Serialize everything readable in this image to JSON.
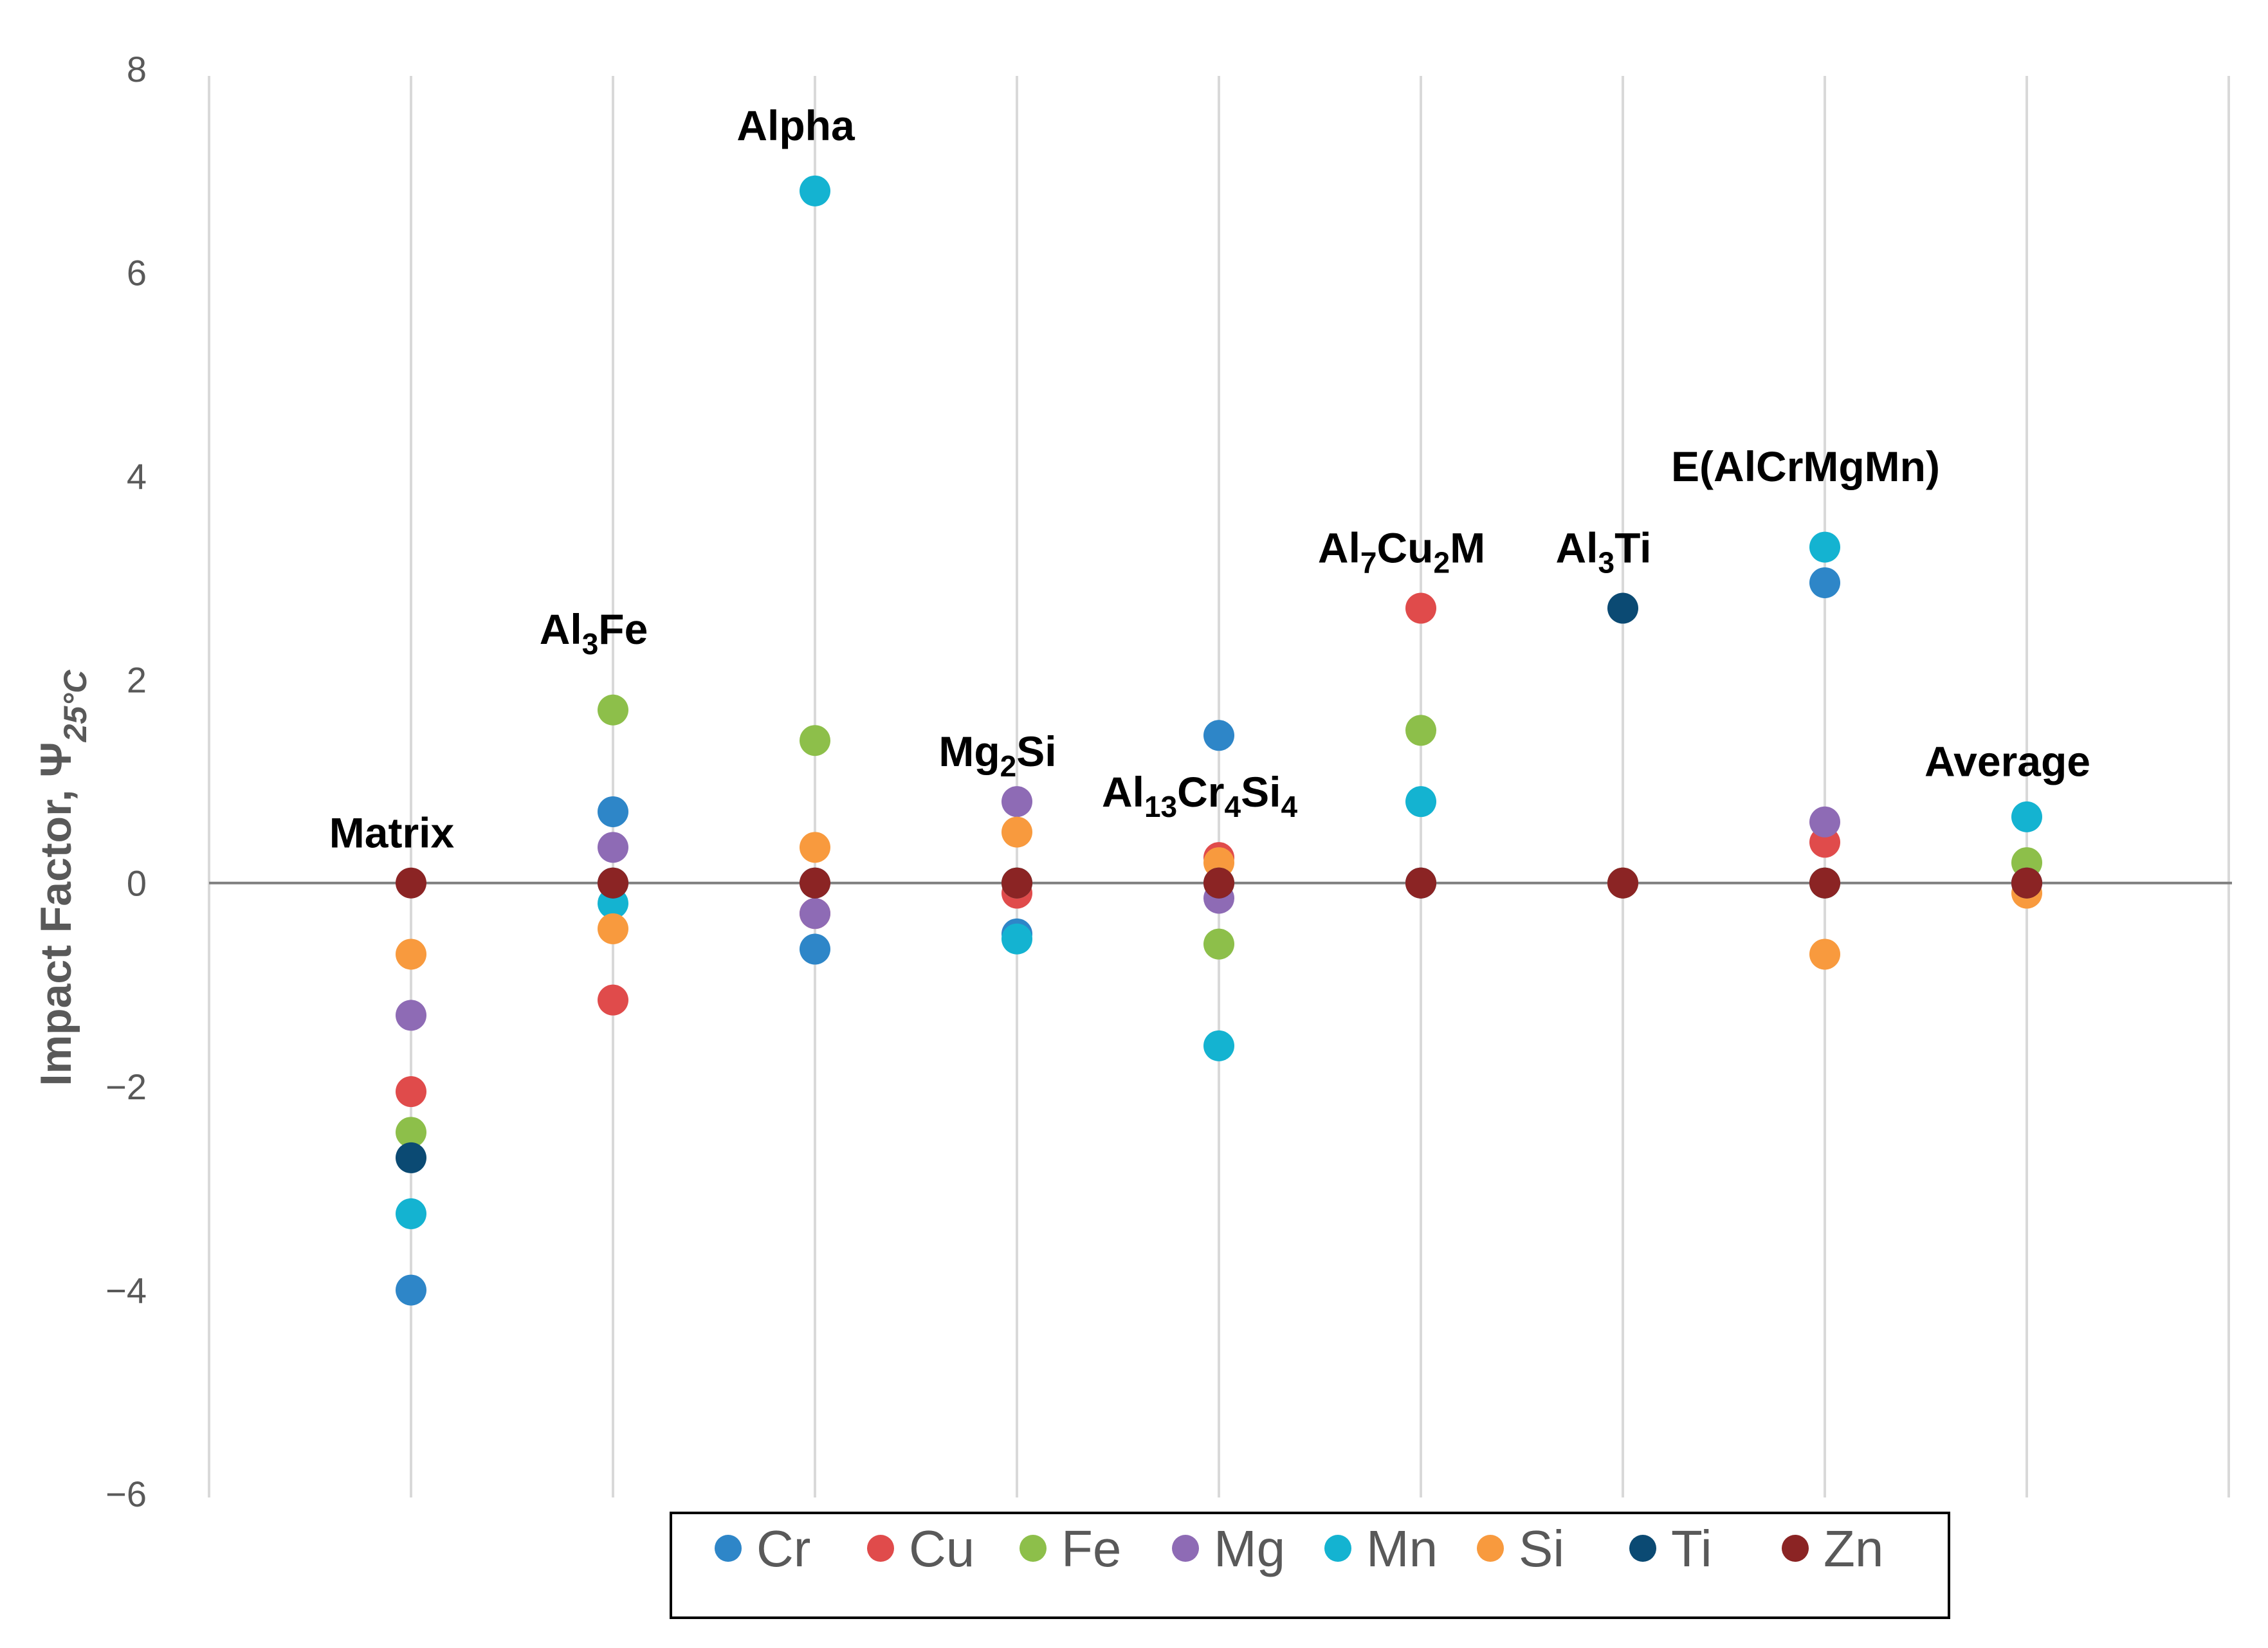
{
  "chart_data": {
    "type": "scatter",
    "title": "",
    "xlabel": "",
    "ylabel": "Impact Factor, Ψ",
    "ylabel_subscript": "25°C",
    "ylim": [
      -6,
      8
    ],
    "yticks": [
      -6,
      -4,
      -2,
      0,
      2,
      4,
      6,
      8
    ],
    "ytick_labels": [
      "−6",
      "−4",
      "−2",
      "0",
      "2",
      "4",
      "6",
      "8"
    ],
    "categories": [
      "Matrix",
      "Al3Fe",
      "Alpha",
      "Mg2Si",
      "Al13Cr4Si4",
      "Al7Cu2M",
      "Al3Ti",
      "E(AlCrMgMn)",
      "Average"
    ],
    "legend_position": "bottom",
    "series": [
      {
        "name": "Cr",
        "color": "#2E86C8",
        "values": [
          -4.0,
          0.7,
          -0.65,
          -0.5,
          1.45,
          0.0,
          0.0,
          2.95,
          0.0
        ]
      },
      {
        "name": "Cu",
        "color": "#E04B4B",
        "values": [
          -2.05,
          -1.15,
          -0.3,
          -0.1,
          0.25,
          2.7,
          0.0,
          0.4,
          0.0
        ]
      },
      {
        "name": "Fe",
        "color": "#8DBF4A",
        "values": [
          -2.45,
          1.7,
          1.4,
          0.0,
          -0.6,
          1.5,
          0.0,
          0.0,
          0.2
        ]
      },
      {
        "name": "Mg",
        "color": "#8E6BB5",
        "values": [
          -1.3,
          0.35,
          -0.3,
          0.8,
          -0.15,
          0.0,
          0.0,
          0.6,
          0.0
        ]
      },
      {
        "name": "Mn",
        "color": "#14B3D1",
        "values": [
          -3.25,
          -0.2,
          6.8,
          -0.55,
          -1.6,
          0.8,
          0.0,
          3.3,
          0.65
        ]
      },
      {
        "name": "Si",
        "color": "#F89A3E",
        "values": [
          -0.7,
          -0.45,
          0.35,
          0.5,
          0.2,
          0.0,
          0.0,
          -0.7,
          -0.1
        ]
      },
      {
        "name": "Ti",
        "color": "#0B4A73",
        "values": [
          -2.7,
          0.0,
          0.0,
          0.0,
          0.0,
          0.0,
          2.7,
          0.0,
          0.0
        ]
      },
      {
        "name": "Zn",
        "color": "#8B2424",
        "values": [
          0.0,
          0.0,
          0.0,
          0.0,
          0.0,
          0.0,
          0.0,
          0.0,
          0.0
        ]
      }
    ],
    "annotations": [
      {
        "category": "Matrix",
        "y": 0.35,
        "parts": [
          {
            "t": "Matrix",
            "sub": false
          }
        ]
      },
      {
        "category": "Al3Fe",
        "y": 2.35,
        "parts": [
          {
            "t": "Al",
            "sub": false
          },
          {
            "t": "3",
            "sub": true
          },
          {
            "t": "Fe",
            "sub": false
          }
        ]
      },
      {
        "category": "Alpha",
        "y": 7.3,
        "parts": [
          {
            "t": "Alpha",
            "sub": false
          }
        ]
      },
      {
        "category": "Mg2Si",
        "y": 1.15,
        "parts": [
          {
            "t": "Mg",
            "sub": false
          },
          {
            "t": "2",
            "sub": true
          },
          {
            "t": "Si",
            "sub": false
          }
        ]
      },
      {
        "category": "Al13Cr4Si4",
        "y": 0.75,
        "parts": [
          {
            "t": "Al",
            "sub": false
          },
          {
            "t": "13",
            "sub": true
          },
          {
            "t": "Cr",
            "sub": false
          },
          {
            "t": "4",
            "sub": true
          },
          {
            "t": "Si",
            "sub": false
          },
          {
            "t": "4",
            "sub": true
          }
        ]
      },
      {
        "category": "Al7Cu2M",
        "y": 3.15,
        "parts": [
          {
            "t": "Al",
            "sub": false
          },
          {
            "t": "7",
            "sub": true
          },
          {
            "t": "Cu",
            "sub": false
          },
          {
            "t": "2",
            "sub": true
          },
          {
            "t": "M",
            "sub": false
          }
        ]
      },
      {
        "category": "Al3Ti",
        "y": 3.15,
        "parts": [
          {
            "t": "Al",
            "sub": false
          },
          {
            "t": "3",
            "sub": true
          },
          {
            "t": "Ti",
            "sub": false
          }
        ]
      },
      {
        "category": "E(AlCrMgMn)",
        "y": 3.95,
        "parts": [
          {
            "t": "E(AlCrMgMn)",
            "sub": false
          }
        ]
      },
      {
        "category": "Average",
        "y": 1.05,
        "parts": [
          {
            "t": "Average",
            "sub": false
          }
        ]
      }
    ]
  }
}
